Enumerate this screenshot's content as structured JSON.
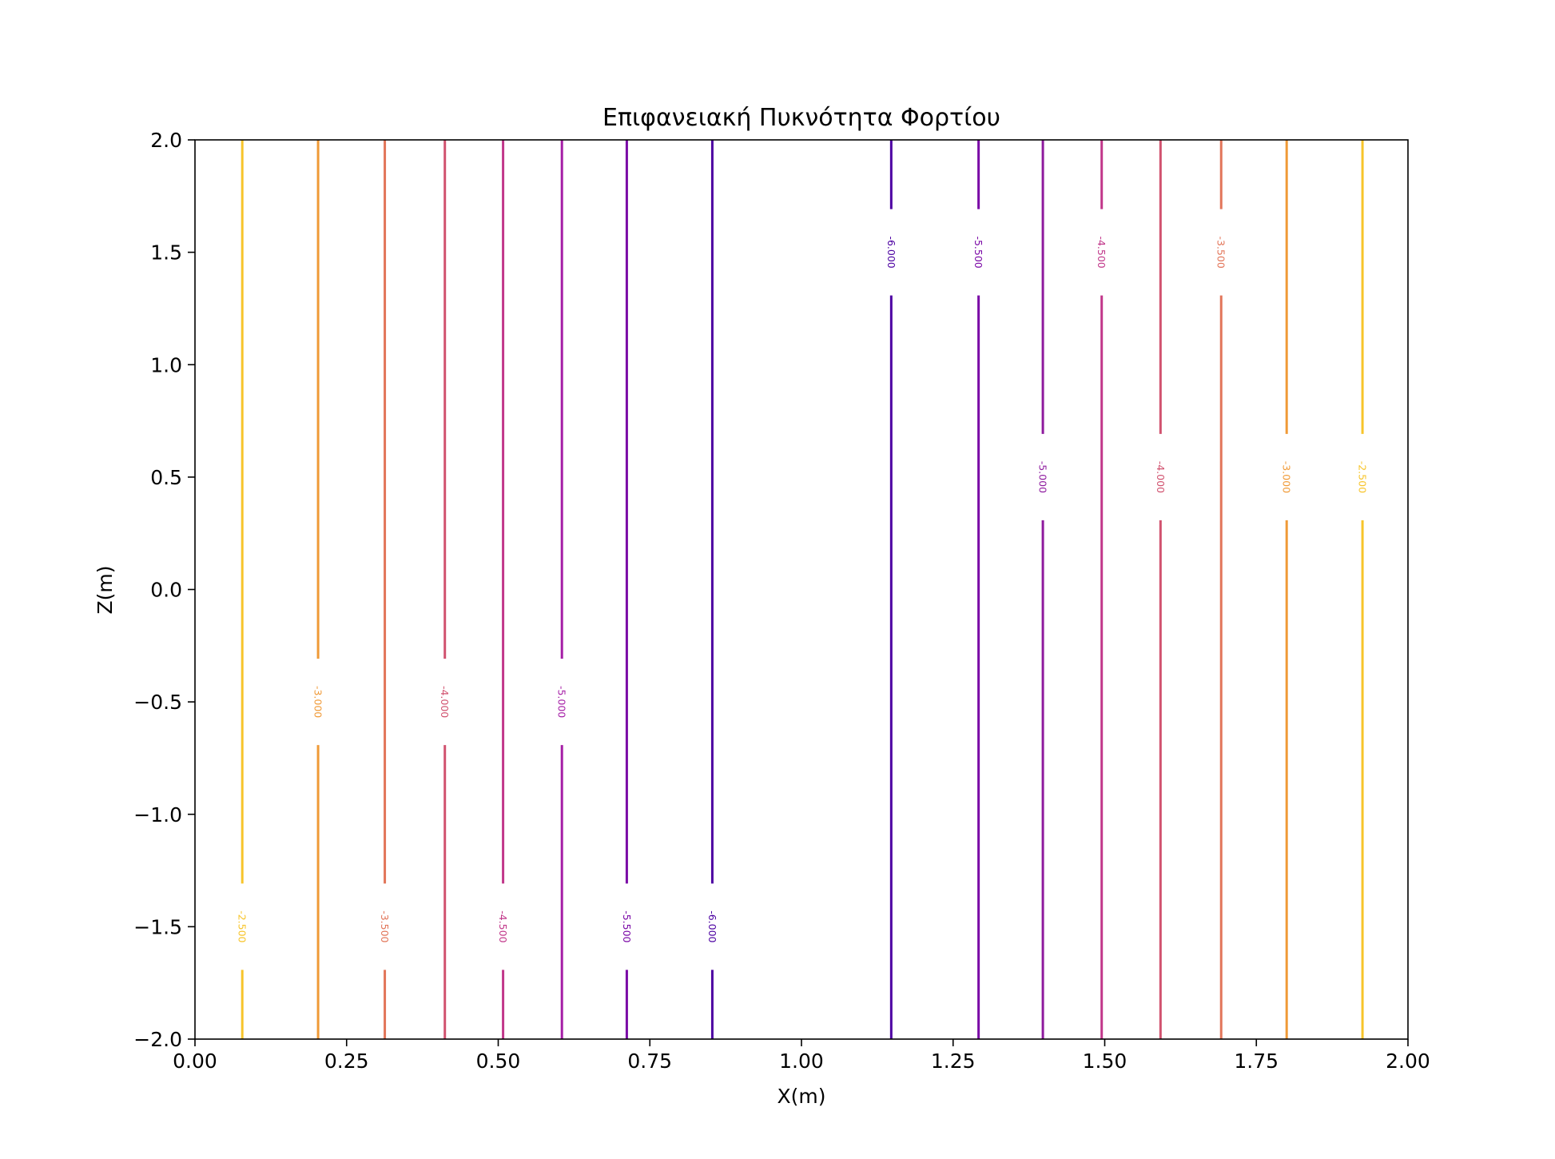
{
  "chart_data": {
    "type": "contour",
    "title": "Επιφανειακή Πυκνότητα Φορτίου",
    "xlabel": "X(m)",
    "ylabel": "Z(m)",
    "xlim": [
      0.0,
      2.0
    ],
    "ylim": [
      -2.0,
      2.0
    ],
    "x_ticks": [
      0.0,
      0.25,
      0.5,
      0.75,
      1.0,
      1.25,
      1.5,
      1.75,
      2.0
    ],
    "x_tick_labels": [
      "0.00",
      "0.25",
      "0.50",
      "0.75",
      "1.00",
      "1.25",
      "1.50",
      "1.75",
      "2.00"
    ],
    "y_ticks": [
      -2.0,
      -1.5,
      -1.0,
      -0.5,
      0.0,
      0.5,
      1.0,
      1.5,
      2.0
    ],
    "y_tick_labels": [
      "−2.0",
      "−1.5",
      "−1.0",
      "−0.5",
      "0.0",
      "0.5",
      "1.0",
      "1.5",
      "2.0"
    ],
    "grid": false,
    "colormap": "plasma",
    "levels": [
      {
        "x": 0.078,
        "level": -2.5,
        "color": "#f7c42a",
        "label": "-2.500",
        "label_z": -1.5
      },
      {
        "x": 0.203,
        "level": -3.0,
        "color": "#f09a37",
        "label": "-3.000",
        "label_z": -0.5
      },
      {
        "x": 0.313,
        "level": -3.5,
        "color": "#e27559",
        "label": "-3.500",
        "label_z": -1.5
      },
      {
        "x": 0.412,
        "level": -4.0,
        "color": "#d1526f",
        "label": "-4.000",
        "label_z": -0.5
      },
      {
        "x": 0.508,
        "level": -4.5,
        "color": "#c1378a",
        "label": "-4.500",
        "label_z": -1.5
      },
      {
        "x": 0.605,
        "level": -5.0,
        "color": "#a51da6",
        "label": "-5.000",
        "label_z": -0.5
      },
      {
        "x": 0.712,
        "level": -5.5,
        "color": "#7a07a6",
        "label": "-5.500",
        "label_z": -1.5
      },
      {
        "x": 0.853,
        "level": -6.0,
        "color": "#4d02a2",
        "label": "-6.000",
        "label_z": -1.5
      },
      {
        "x": 1.148,
        "level": -6.0,
        "color": "#4d02a2",
        "label": "-6.000",
        "label_z": 1.5
      },
      {
        "x": 1.292,
        "level": -5.5,
        "color": "#7a07a6",
        "label": "-5.500",
        "label_z": 1.5
      },
      {
        "x": 1.398,
        "level": -5.0,
        "color": "#8e1a9e",
        "label": "-5.000",
        "label_z": 0.5
      },
      {
        "x": 1.495,
        "level": -4.5,
        "color": "#c1378a",
        "label": "-4.500",
        "label_z": 1.5
      },
      {
        "x": 1.592,
        "level": -4.0,
        "color": "#d1526f",
        "label": "-4.000",
        "label_z": 0.5
      },
      {
        "x": 1.692,
        "level": -3.5,
        "color": "#e27559",
        "label": "-3.500",
        "label_z": 1.5
      },
      {
        "x": 1.8,
        "level": -3.0,
        "color": "#f09a37",
        "label": "-3.000",
        "label_z": 0.5
      },
      {
        "x": 1.925,
        "level": -2.5,
        "color": "#f7c42a",
        "label": "-2.500",
        "label_z": 0.5
      }
    ]
  }
}
